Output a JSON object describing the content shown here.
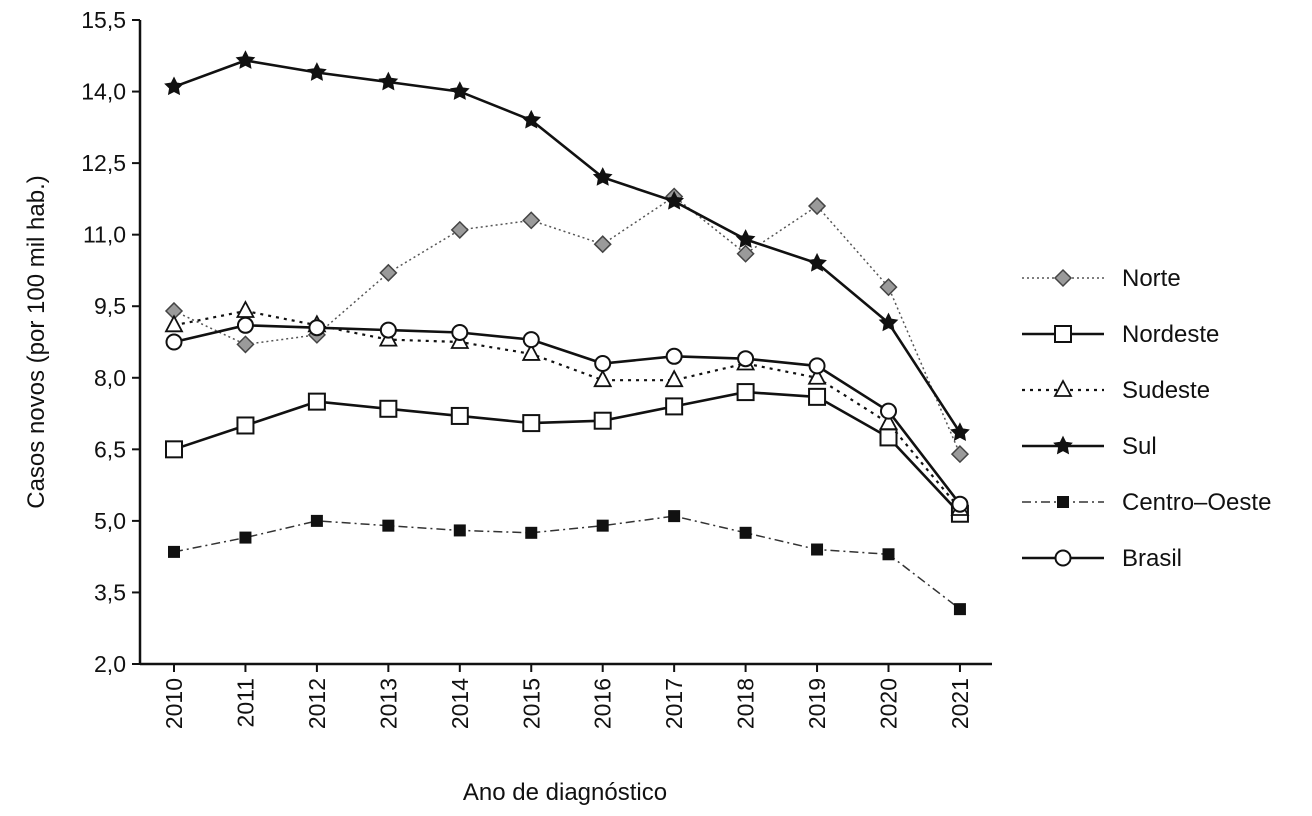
{
  "chart_data": {
    "type": "line",
    "title": "",
    "xlabel": "Ano de diagnóstico",
    "ylabel": "Casos novos (por 100 mil hab.)",
    "categories": [
      "2010",
      "2011",
      "2012",
      "2013",
      "2014",
      "2015",
      "2016",
      "2017",
      "2018",
      "2019",
      "2020",
      "2021"
    ],
    "ylim": [
      2.0,
      15.5
    ],
    "yticks": [
      2.0,
      3.5,
      5.0,
      6.5,
      8.0,
      9.5,
      11.0,
      12.5,
      14.0,
      15.5
    ],
    "ytick_labels": [
      "2,0",
      "3,5",
      "5,0",
      "6,5",
      "8,0",
      "9,5",
      "11,0",
      "12,5",
      "14,0",
      "15,5"
    ],
    "grid": false,
    "legend_position": "right",
    "series": [
      {
        "name": "Norte",
        "color": "#9a9a9a",
        "line": "dotted",
        "marker": "diamond",
        "values": [
          9.4,
          8.7,
          8.9,
          10.2,
          11.1,
          11.3,
          10.8,
          11.8,
          10.6,
          11.6,
          9.9,
          6.4
        ]
      },
      {
        "name": "Nordeste",
        "color": "#ffffff",
        "line": "solid",
        "marker": "square-open",
        "values": [
          6.5,
          7.0,
          7.5,
          7.35,
          7.2,
          7.05,
          7.1,
          7.4,
          7.7,
          7.6,
          6.75,
          5.15
        ]
      },
      {
        "name": "Sudeste",
        "color": "#ffffff",
        "line": "dotted-bold",
        "marker": "triangle-open",
        "values": [
          9.1,
          9.4,
          9.1,
          8.8,
          8.75,
          8.5,
          7.95,
          7.95,
          8.3,
          8.0,
          7.05,
          5.25
        ]
      },
      {
        "name": "Sul",
        "color": "#111111",
        "line": "solid",
        "marker": "star",
        "values": [
          14.1,
          14.65,
          14.4,
          14.2,
          14.0,
          13.4,
          12.2,
          11.7,
          10.9,
          10.4,
          9.15,
          6.85
        ]
      },
      {
        "name": "Centro–Oeste",
        "color": "#111111",
        "line": "dashdot",
        "marker": "square-filled",
        "values": [
          4.35,
          4.65,
          5.0,
          4.9,
          4.8,
          4.75,
          4.9,
          5.1,
          4.75,
          4.4,
          4.3,
          3.15
        ]
      },
      {
        "name": "Brasil",
        "color": "#ffffff",
        "line": "solid",
        "marker": "circle-open",
        "values": [
          8.75,
          9.1,
          9.05,
          9.0,
          8.95,
          8.8,
          8.3,
          8.45,
          8.4,
          8.25,
          7.3,
          5.35
        ]
      }
    ]
  }
}
